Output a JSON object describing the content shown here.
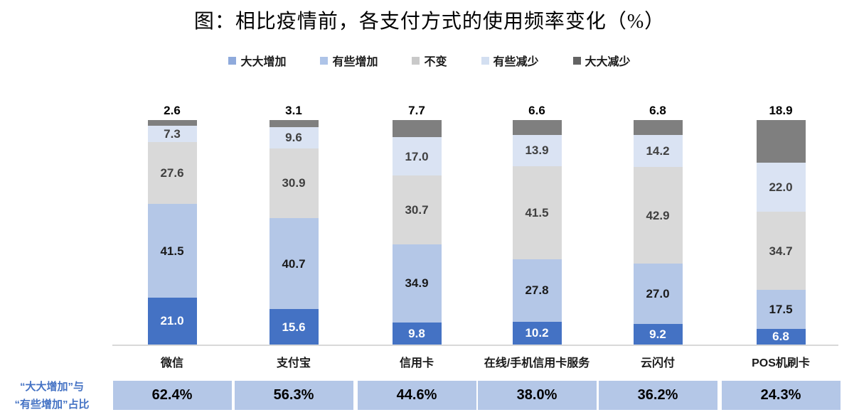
{
  "title": "图：相比疫情前，各支付方式的使用频率变化（%）",
  "legend": {
    "items": [
      {
        "label": "大大增加",
        "swatch_color": "#8faadc"
      },
      {
        "label": "有些增加",
        "swatch_color": "#aec4e8"
      },
      {
        "label": "不变",
        "swatch_color": "#c9c9c9"
      },
      {
        "label": "有些减少",
        "swatch_color": "#d3dff1"
      },
      {
        "label": "大大减少",
        "swatch_color": "#636363"
      }
    ]
  },
  "chart_data": {
    "type": "bar",
    "stacked": true,
    "title": "图：相比疫情前，各支付方式的使用频率变化（%）",
    "categories": [
      "微信",
      "支付宝",
      "信用卡",
      "在线/手机信用卡服务",
      "云闪付",
      "POS机刷卡"
    ],
    "series": [
      {
        "name": "大大增加",
        "color": "#4472c4",
        "label_color": "#ffffff",
        "values": [
          21.0,
          15.6,
          9.8,
          10.2,
          9.2,
          6.8
        ]
      },
      {
        "name": "有些增加",
        "color": "#b4c7e7",
        "label_color": "#1a1a1a",
        "values": [
          41.5,
          40.7,
          34.9,
          27.8,
          27.0,
          17.5
        ]
      },
      {
        "name": "不变",
        "color": "#d9d9d9",
        "label_color": "#404040",
        "values": [
          27.6,
          30.9,
          30.7,
          41.5,
          42.9,
          34.7
        ]
      },
      {
        "name": "有些减少",
        "color": "#dae3f3",
        "label_color": "#404040",
        "values": [
          7.3,
          9.6,
          17.0,
          13.9,
          14.2,
          22.0
        ]
      },
      {
        "name": "大大减少",
        "color": "#7f7f7f",
        "label_color": "#000000",
        "values": [
          2.6,
          3.1,
          7.7,
          6.6,
          6.8,
          18.9
        ]
      }
    ],
    "ylim": [
      0,
      100
    ],
    "grid": false,
    "legend_position": "top",
    "value_labels": "all segments labeled; top segment labeled above bar",
    "axis_line_color": "#d9d9d9"
  },
  "summary_row": {
    "label_line1": "“大大增加”与",
    "label_line2": "“有些增加”占比",
    "label_color": "#4472c4",
    "box_color": "#b4c7e7",
    "values": [
      "62.4%",
      "56.3%",
      "44.6%",
      "38.0%",
      "36.2%",
      "24.3%"
    ]
  }
}
